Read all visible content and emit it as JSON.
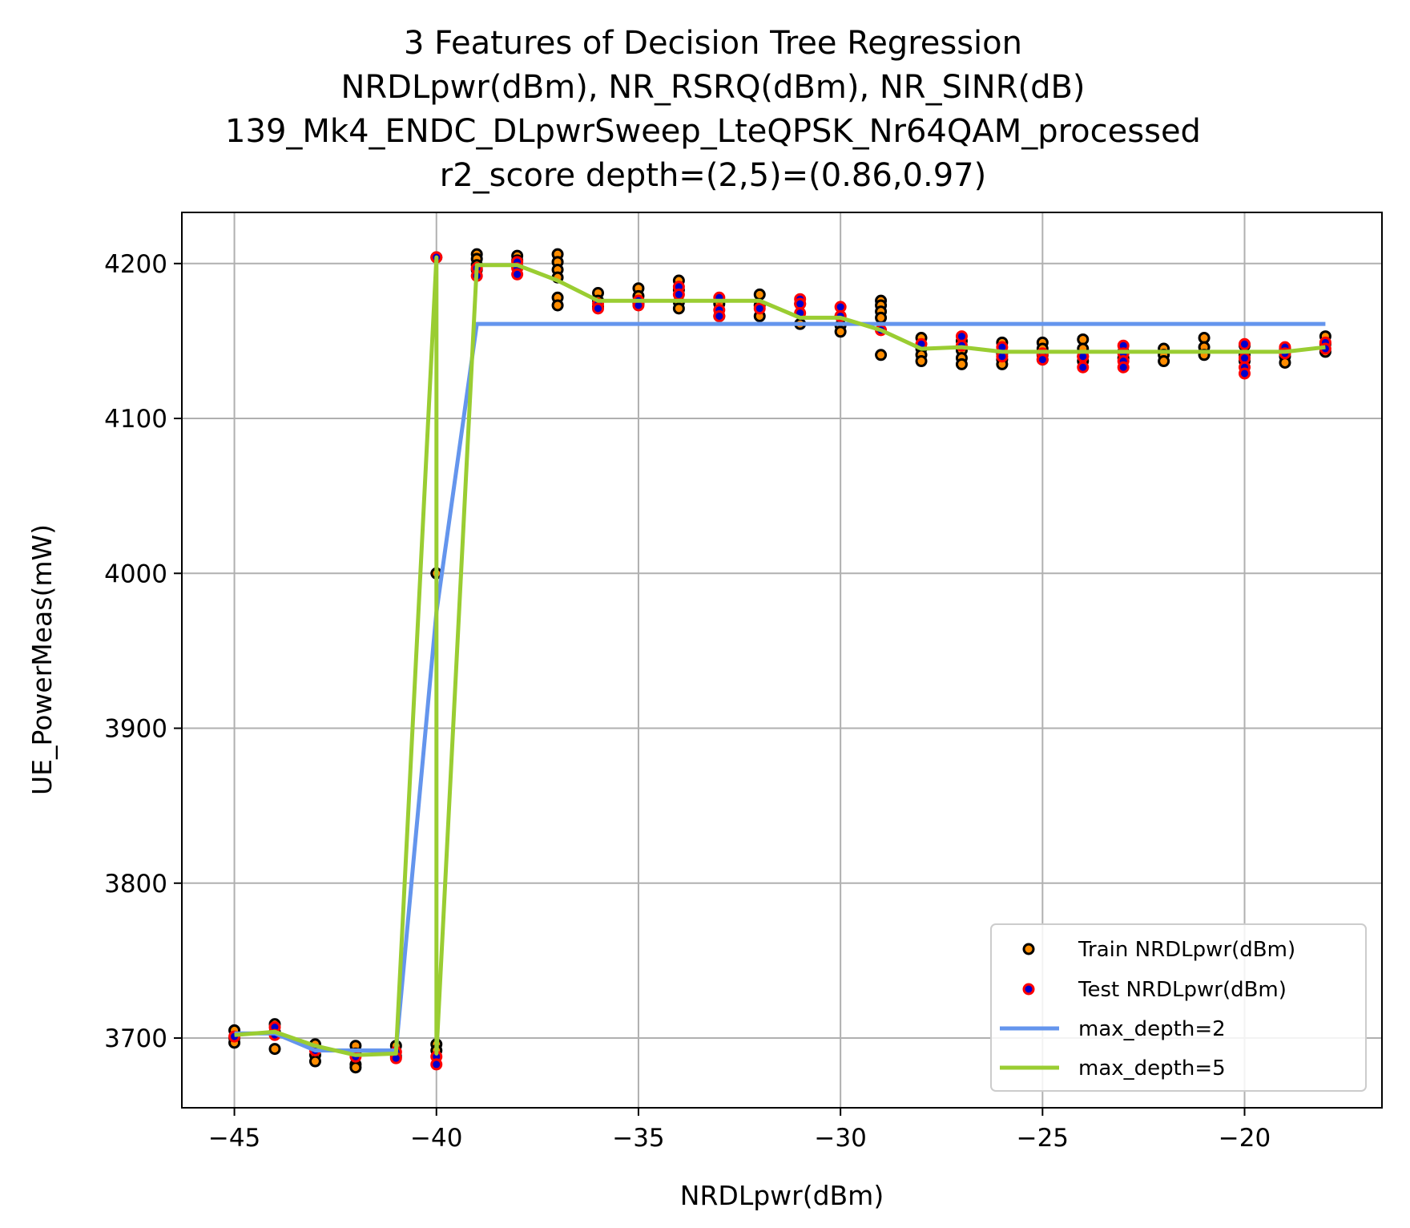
{
  "chart_data": {
    "type": "scatter",
    "title_lines": [
      "3 Features of Decision Tree Regression",
      "NRDLpwr(dBm), NR_RSRQ(dBm), NR_SINR(dB)",
      "139_Mk4_ENDC_DLpwrSweep_LteQPSK_Nr64QAM_processed",
      "r2_score depth=(2,5)=(0.86,0.97)"
    ],
    "xlabel": "NRDLpwr(dBm)",
    "ylabel": "UE_PowerMeas(mW)",
    "xlim": [
      -46.3,
      -16.6
    ],
    "ylim": [
      3655,
      4233
    ],
    "xticks": [
      -45,
      -40,
      -35,
      -30,
      -25,
      -20
    ],
    "xtick_labels": [
      "−45",
      "−40",
      "−35",
      "−30",
      "−25",
      "−20"
    ],
    "yticks": [
      3700,
      3800,
      3900,
      4000,
      4100,
      4200
    ],
    "ytick_labels": [
      "3700",
      "3800",
      "3900",
      "4000",
      "4100",
      "4200"
    ],
    "grid": true,
    "legend_position": "lower-right",
    "colors": {
      "train_fill": "#ff8c00",
      "train_edge": "#000000",
      "test_fill": "#0000cd",
      "test_edge": "#ff0000",
      "depth2": "#6495ed",
      "depth5": "#9acd32",
      "grid": "#b0b0b0"
    },
    "series": [
      {
        "name": "Train NRDLpwr(dBm)",
        "kind": "scatter",
        "points": [
          [
            -45,
            3705
          ],
          [
            -45,
            3700
          ],
          [
            -45,
            3697
          ],
          [
            -44,
            3709
          ],
          [
            -44,
            3704
          ],
          [
            -44,
            3693
          ],
          [
            -43,
            3696
          ],
          [
            -43,
            3689
          ],
          [
            -43,
            3685
          ],
          [
            -42,
            3695
          ],
          [
            -42,
            3690
          ],
          [
            -42,
            3683
          ],
          [
            -42,
            3681
          ],
          [
            -41,
            3695
          ],
          [
            -41,
            3688
          ],
          [
            -40,
            4204
          ],
          [
            -40,
            4000
          ],
          [
            -40,
            3696
          ],
          [
            -40,
            3692
          ],
          [
            -39,
            4206
          ],
          [
            -39,
            4203
          ],
          [
            -39,
            4199
          ],
          [
            -39,
            4196
          ],
          [
            -38,
            4205
          ],
          [
            -38,
            4202
          ],
          [
            -38,
            4198
          ],
          [
            -37,
            4206
          ],
          [
            -37,
            4201
          ],
          [
            -37,
            4196
          ],
          [
            -37,
            4191
          ],
          [
            -37,
            4178
          ],
          [
            -37,
            4173
          ],
          [
            -36,
            4181
          ],
          [
            -36,
            4176
          ],
          [
            -36,
            4172
          ],
          [
            -35,
            4184
          ],
          [
            -35,
            4179
          ],
          [
            -35,
            4174
          ],
          [
            -34,
            4189
          ],
          [
            -34,
            4183
          ],
          [
            -34,
            4175
          ],
          [
            -34,
            4171
          ],
          [
            -33,
            4174
          ],
          [
            -33,
            4166
          ],
          [
            -32,
            4180
          ],
          [
            -32,
            4173
          ],
          [
            -32,
            4166
          ],
          [
            -31,
            4174
          ],
          [
            -31,
            4161
          ],
          [
            -30,
            4166
          ],
          [
            -30,
            4160
          ],
          [
            -30,
            4156
          ],
          [
            -29,
            4176
          ],
          [
            -29,
            4173
          ],
          [
            -29,
            4169
          ],
          [
            -29,
            4165
          ],
          [
            -29,
            4141
          ],
          [
            -28,
            4152
          ],
          [
            -28,
            4145
          ],
          [
            -28,
            4141
          ],
          [
            -28,
            4137
          ],
          [
            -27,
            4150
          ],
          [
            -27,
            4144
          ],
          [
            -27,
            4139
          ],
          [
            -27,
            4135
          ],
          [
            -26,
            4149
          ],
          [
            -26,
            4142
          ],
          [
            -26,
            4138
          ],
          [
            -26,
            4135
          ],
          [
            -25,
            4149
          ],
          [
            -25,
            4145
          ],
          [
            -25,
            4141
          ],
          [
            -25,
            4138
          ],
          [
            -24,
            4151
          ],
          [
            -24,
            4145
          ],
          [
            -24,
            4140
          ],
          [
            -24,
            4137
          ],
          [
            -23,
            4143
          ],
          [
            -23,
            4139
          ],
          [
            -22,
            4145
          ],
          [
            -22,
            4141
          ],
          [
            -22,
            4137
          ],
          [
            -21,
            4152
          ],
          [
            -21,
            4146
          ],
          [
            -21,
            4141
          ],
          [
            -20,
            4147
          ],
          [
            -20,
            4141
          ],
          [
            -20,
            4137
          ],
          [
            -19,
            4145
          ],
          [
            -19,
            4140
          ],
          [
            -19,
            4136
          ],
          [
            -18,
            4153
          ],
          [
            -18,
            4148
          ],
          [
            -18,
            4143
          ]
        ]
      },
      {
        "name": "Test NRDLpwr(dBm)",
        "kind": "scatter",
        "points": [
          [
            -45,
            3701
          ],
          [
            -44,
            3707
          ],
          [
            -44,
            3702
          ],
          [
            -43,
            3692
          ],
          [
            -42,
            3688
          ],
          [
            -41,
            3691
          ],
          [
            -41,
            3687
          ],
          [
            -40,
            4204
          ],
          [
            -40,
            3688
          ],
          [
            -40,
            3683
          ],
          [
            -39,
            4197
          ],
          [
            -39,
            4192
          ],
          [
            -38,
            4201
          ],
          [
            -38,
            4197
          ],
          [
            -38,
            4193
          ],
          [
            -36,
            4174
          ],
          [
            -36,
            4171
          ],
          [
            -35,
            4176
          ],
          [
            -35,
            4173
          ],
          [
            -34,
            4185
          ],
          [
            -34,
            4180
          ],
          [
            -33,
            4178
          ],
          [
            -33,
            4170
          ],
          [
            -33,
            4166
          ],
          [
            -32,
            4171
          ],
          [
            -31,
            4177
          ],
          [
            -31,
            4174
          ],
          [
            -31,
            4168
          ],
          [
            -30,
            4172
          ],
          [
            -30,
            4166
          ],
          [
            -29,
            4157
          ],
          [
            -28,
            4148
          ],
          [
            -27,
            4153
          ],
          [
            -27,
            4147
          ],
          [
            -26,
            4146
          ],
          [
            -26,
            4140
          ],
          [
            -25,
            4142
          ],
          [
            -25,
            4138
          ],
          [
            -24,
            4140
          ],
          [
            -24,
            4133
          ],
          [
            -23,
            4147
          ],
          [
            -23,
            4142
          ],
          [
            -23,
            4137
          ],
          [
            -23,
            4133
          ],
          [
            -20,
            4148
          ],
          [
            -20,
            4139
          ],
          [
            -20,
            4133
          ],
          [
            -20,
            4129
          ],
          [
            -19,
            4146
          ],
          [
            -19,
            4142
          ],
          [
            -18,
            4149
          ],
          [
            -18,
            4145
          ]
        ]
      },
      {
        "name": "max_depth=2",
        "kind": "line",
        "points": [
          [
            -45,
            3703
          ],
          [
            -44,
            3703
          ],
          [
            -43,
            3692
          ],
          [
            -42,
            3692
          ],
          [
            -41,
            3692
          ],
          [
            -40,
            3975
          ],
          [
            -39,
            4161
          ],
          [
            -38,
            4161
          ],
          [
            -37,
            4161
          ],
          [
            -36,
            4161
          ],
          [
            -35,
            4161
          ],
          [
            -34,
            4161
          ],
          [
            -33,
            4161
          ],
          [
            -32,
            4161
          ],
          [
            -31,
            4161
          ],
          [
            -30,
            4161
          ],
          [
            -29,
            4161
          ],
          [
            -28,
            4161
          ],
          [
            -27,
            4161
          ],
          [
            -26,
            4161
          ],
          [
            -25,
            4161
          ],
          [
            -24,
            4161
          ],
          [
            -23,
            4161
          ],
          [
            -22,
            4161
          ],
          [
            -21,
            4161
          ],
          [
            -20,
            4161
          ],
          [
            -19,
            4161
          ],
          [
            -18,
            4161
          ]
        ]
      },
      {
        "name": "max_depth=5",
        "kind": "line",
        "points": [
          [
            -45,
            3702
          ],
          [
            -44,
            3704
          ],
          [
            -43,
            3695
          ],
          [
            -42,
            3689
          ],
          [
            -41,
            3690
          ],
          [
            -40,
            4204
          ],
          [
            -40,
            3690
          ],
          [
            -39,
            4199
          ],
          [
            -38,
            4199
          ],
          [
            -37,
            4189
          ],
          [
            -36,
            4176
          ],
          [
            -35,
            4176
          ],
          [
            -34,
            4176
          ],
          [
            -33,
            4176
          ],
          [
            -32,
            4176
          ],
          [
            -31,
            4165
          ],
          [
            -30,
            4165
          ],
          [
            -29,
            4157
          ],
          [
            -28,
            4145
          ],
          [
            -27,
            4146
          ],
          [
            -26,
            4143
          ],
          [
            -25,
            4143
          ],
          [
            -24,
            4143
          ],
          [
            -23,
            4143
          ],
          [
            -22,
            4143
          ],
          [
            -21,
            4143
          ],
          [
            -20,
            4143
          ],
          [
            -19,
            4143
          ],
          [
            -18,
            4146
          ]
        ]
      }
    ]
  }
}
